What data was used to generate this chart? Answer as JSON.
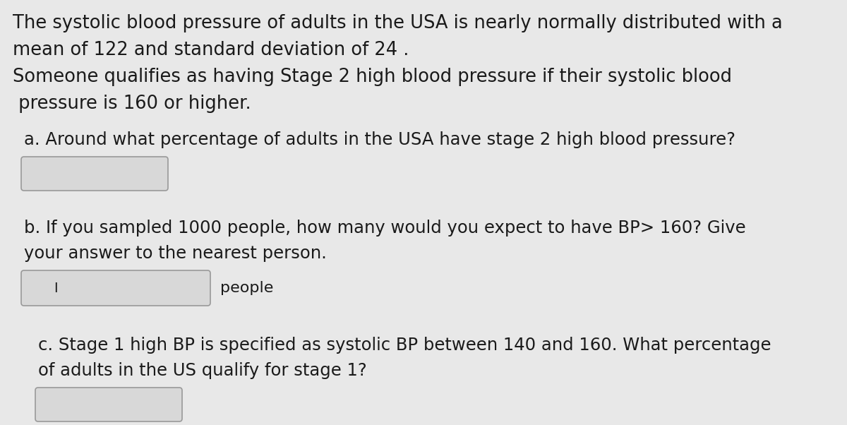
{
  "background_color": "#e8e8e8",
  "text_color": "#1a1a1a",
  "lines_block1_l1": "The systolic blood pressure of adults in the USA is nearly normally distributed with a",
  "lines_block1_l2": "mean of 122 and standard deviation of 24 .",
  "lines_block1_l3": "Someone qualifies as having Stage 2 high blood pressure if their systolic blood",
  "lines_block1_l4": " pressure is 160 or higher.",
  "line_a_q": "a. Around what percentage of adults in the USA have stage 2 high blood pressure?",
  "line_b_q1": "b. If you sampled 1000 people, how many would you expect to have BP> 160? Give",
  "line_b_q2": "your answer to the nearest person.",
  "line_b_label": "people",
  "line_c_q1": "c. Stage 1 high BP is specified as systolic BP between 140 and 160. What percentage",
  "line_c_q2": "of adults in the US qualify for stage 1?",
  "box_color": "#d8d8d8",
  "box_border_color": "#999999",
  "figsize": [
    12.0,
    6.02
  ],
  "dpi": 100,
  "font_size_intro": 18.5,
  "font_size_q": 17.5,
  "font_size_people": 16.0
}
